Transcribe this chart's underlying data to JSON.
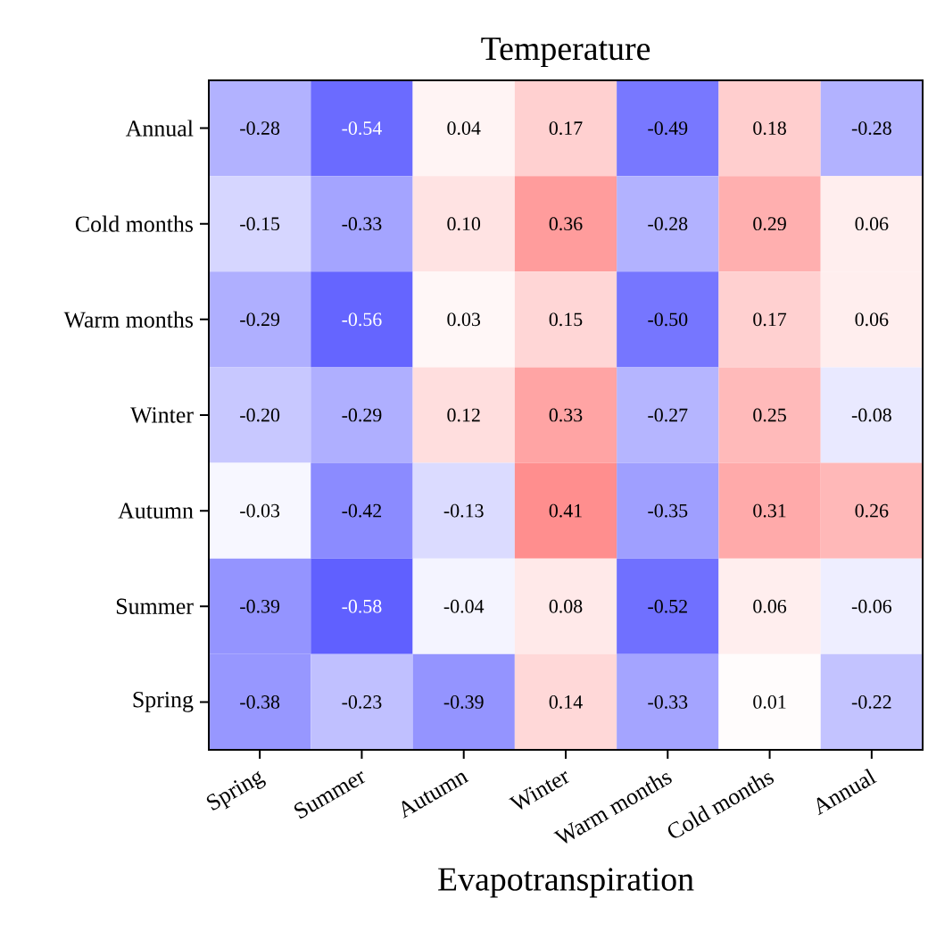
{
  "chart_data": {
    "type": "heatmap",
    "title": "Temperature",
    "xlabel": "Evapotranspiration",
    "categories": [
      "Spring",
      "Summer",
      "Autumn",
      "Winter",
      "Warm months",
      "Cold months",
      "Annual"
    ],
    "y_categories": [
      "Annual",
      "Cold months",
      "Warm months",
      "Winter",
      "Autumn",
      "Summer",
      "Spring"
    ],
    "cells": [
      [
        -0.28,
        -0.54,
        0.04,
        0.17,
        -0.49,
        0.18,
        -0.28
      ],
      [
        -0.15,
        -0.33,
        0.1,
        0.36,
        -0.28,
        0.29,
        0.06
      ],
      [
        -0.29,
        -0.56,
        0.03,
        0.15,
        -0.5,
        0.17,
        0.06
      ],
      [
        -0.2,
        -0.29,
        0.12,
        0.33,
        -0.27,
        0.25,
        -0.08
      ],
      [
        -0.03,
        -0.42,
        -0.13,
        0.41,
        -0.35,
        0.31,
        0.26
      ],
      [
        -0.39,
        -0.58,
        -0.04,
        0.08,
        -0.52,
        0.06,
        -0.06
      ],
      [
        -0.38,
        -0.23,
        -0.39,
        0.14,
        -0.33,
        0.01,
        -0.22
      ]
    ],
    "cell_labels": [
      [
        "-0.28",
        "-0.54",
        "0.04",
        "0.17",
        "-0.49",
        "0.18",
        "-0.28"
      ],
      [
        "-0.15",
        "-0.33",
        "0.10",
        "0.36",
        "-0.28",
        "0.29",
        "0.06"
      ],
      [
        "-0.29",
        "-0.56",
        "0.03",
        "0.15",
        "-0.50",
        "0.17",
        "0.06"
      ],
      [
        "-0.20",
        "-0.29",
        "0.12",
        "0.33",
        "-0.27",
        "0.25",
        "-0.08"
      ],
      [
        "-0.03",
        "-0.42",
        "-0.13",
        "0.41",
        "-0.35",
        "0.31",
        "0.26"
      ],
      [
        "-0.39",
        "-0.58",
        "-0.04",
        "0.08",
        "-0.52",
        "0.06",
        "-0.06"
      ],
      [
        "-0.38",
        "-0.23",
        "-0.39",
        "0.14",
        "-0.33",
        "0.01",
        "-0.22"
      ]
    ]
  }
}
